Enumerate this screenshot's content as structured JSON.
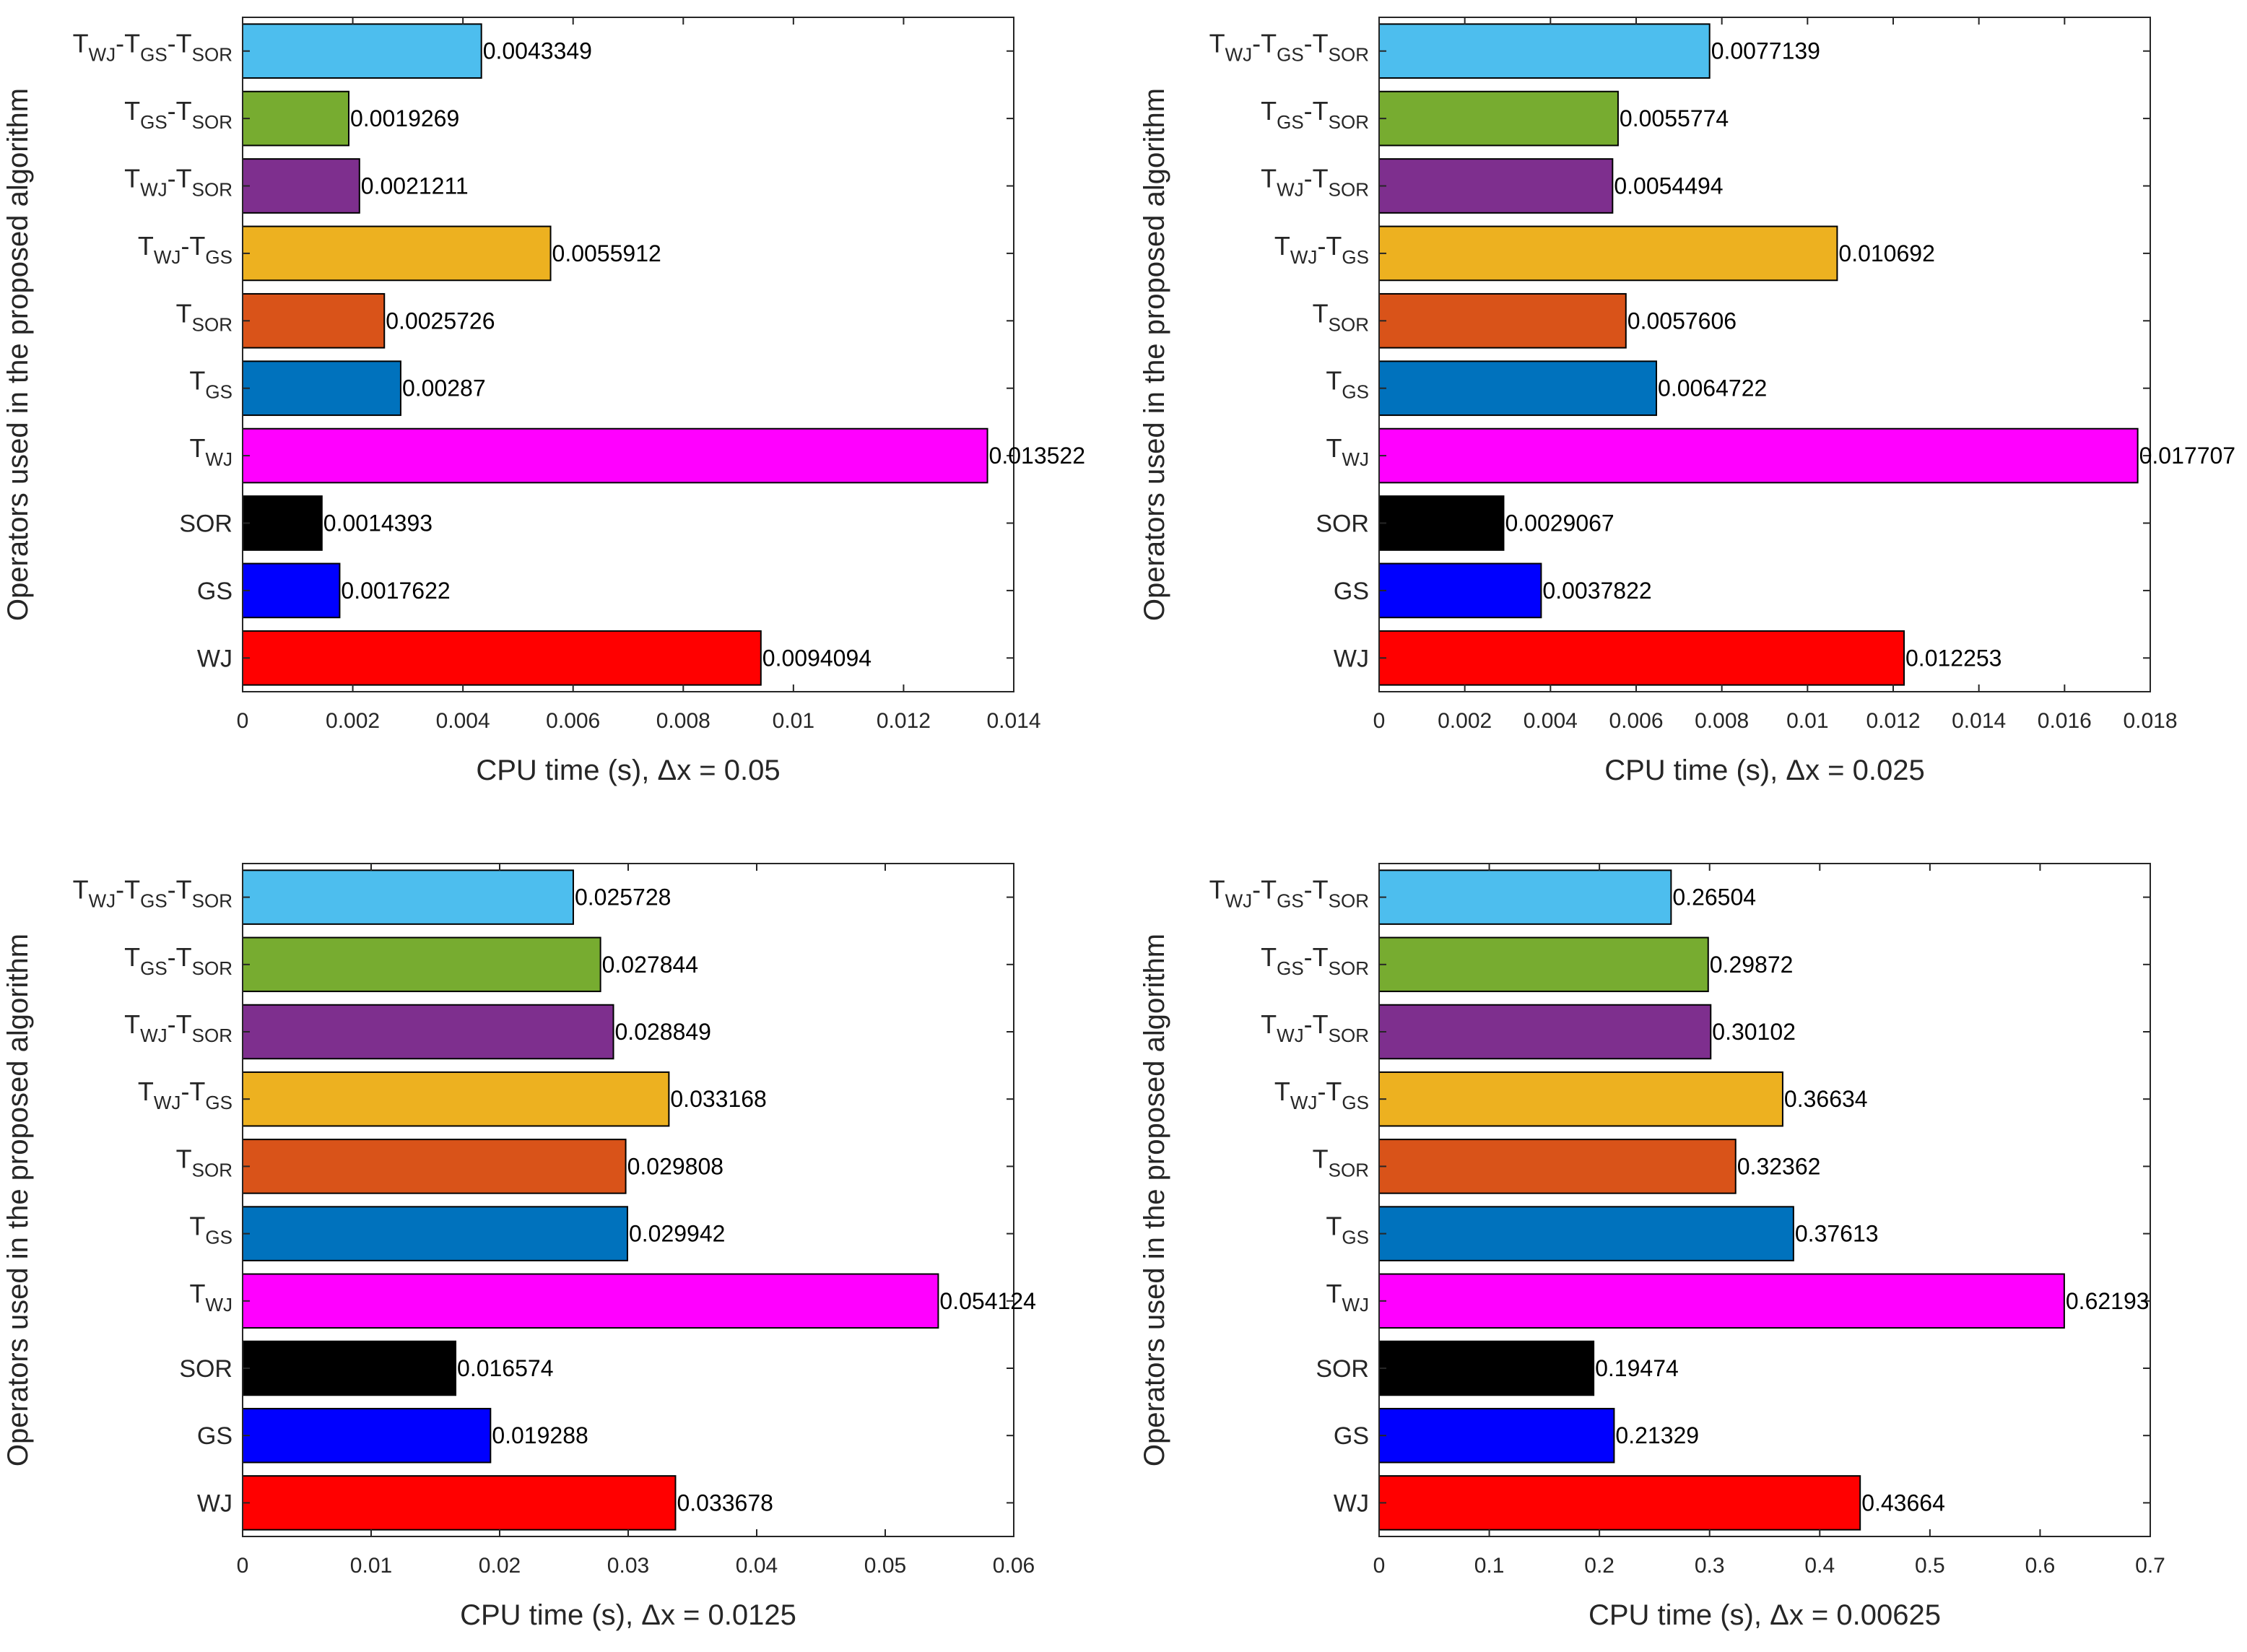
{
  "ylabel": "Operators used in the proposed algorithm",
  "operators": [
    {
      "main": "T",
      "parts": [
        [
          "WJ",
          true
        ],
        [
          "-T",
          false
        ],
        [
          "GS",
          true
        ],
        [
          "-T",
          false
        ],
        [
          "SOR",
          true
        ]
      ]
    },
    {
      "main": "T",
      "parts": [
        [
          "GS",
          true
        ],
        [
          "-T",
          false
        ],
        [
          "SOR",
          true
        ]
      ]
    },
    {
      "main": "T",
      "parts": [
        [
          "WJ",
          true
        ],
        [
          "-T",
          false
        ],
        [
          "SOR",
          true
        ]
      ]
    },
    {
      "main": "T",
      "parts": [
        [
          "WJ",
          true
        ],
        [
          "-T",
          false
        ],
        [
          "GS",
          true
        ]
      ]
    },
    {
      "main": "T",
      "parts": [
        [
          "SOR",
          true
        ]
      ]
    },
    {
      "main": "T",
      "parts": [
        [
          "GS",
          true
        ]
      ]
    },
    {
      "main": "T",
      "parts": [
        [
          "WJ",
          true
        ]
      ]
    },
    {
      "main": "SOR",
      "parts": []
    },
    {
      "main": "GS",
      "parts": []
    },
    {
      "main": "WJ",
      "parts": []
    }
  ],
  "colors": [
    "#4dbeee",
    "#77ac30",
    "#7e2f8e",
    "#edb120",
    "#d95319",
    "#0072bd",
    "#ff00ff",
    "#000000",
    "#0000ff",
    "#ff0000"
  ],
  "chart_data": [
    {
      "type": "bar",
      "orientation": "horizontal",
      "xlabel": "CPU time (s), Δx = 0.05",
      "xlim": [
        0,
        0.014
      ],
      "xticks": [
        0,
        0.002,
        0.004,
        0.006,
        0.008,
        0.01,
        0.012,
        0.014
      ],
      "xtick_labels": [
        "0",
        "0.002",
        "0.004",
        "0.006",
        "0.008",
        "0.01",
        "0.012",
        "0.014"
      ],
      "values": [
        0.0043349,
        0.0019269,
        0.0021211,
        0.0055912,
        0.0025726,
        0.00287,
        0.013522,
        0.0014393,
        0.0017622,
        0.0094094
      ],
      "value_labels": [
        "0.0043349",
        "0.0019269",
        "0.0021211",
        "0.0055912",
        "0.0025726",
        "0.00287",
        "0.013522",
        "0.0014393",
        "0.0017622",
        "0.0094094"
      ]
    },
    {
      "type": "bar",
      "orientation": "horizontal",
      "xlabel": "CPU time (s), Δx = 0.025",
      "xlim": [
        0,
        0.018
      ],
      "xticks": [
        0,
        0.002,
        0.004,
        0.006,
        0.008,
        0.01,
        0.012,
        0.014,
        0.016,
        0.018
      ],
      "xtick_labels": [
        "0",
        "0.002",
        "0.004",
        "0.006",
        "0.008",
        "0.01",
        "0.012",
        "0.014",
        "0.016",
        "0.018"
      ],
      "values": [
        0.0077139,
        0.0055774,
        0.0054494,
        0.010692,
        0.0057606,
        0.0064722,
        0.017707,
        0.0029067,
        0.0037822,
        0.012253
      ],
      "value_labels": [
        "0.0077139",
        "0.0055774",
        "0.0054494",
        "0.010692",
        "0.0057606",
        "0.0064722",
        "0.017707",
        "0.0029067",
        "0.0037822",
        "0.012253"
      ]
    },
    {
      "type": "bar",
      "orientation": "horizontal",
      "xlabel": "CPU time (s), Δx = 0.0125",
      "xlim": [
        0,
        0.06
      ],
      "xticks": [
        0,
        0.01,
        0.02,
        0.03,
        0.04,
        0.05,
        0.06
      ],
      "xtick_labels": [
        "0",
        "0.01",
        "0.02",
        "0.03",
        "0.04",
        "0.05",
        "0.06"
      ],
      "values": [
        0.025728,
        0.027844,
        0.028849,
        0.033168,
        0.029808,
        0.029942,
        0.054124,
        0.016574,
        0.019288,
        0.033678
      ],
      "value_labels": [
        "0.025728",
        "0.027844",
        "0.028849",
        "0.033168",
        "0.029808",
        "0.029942",
        "0.054124",
        "0.016574",
        "0.019288",
        "0.033678"
      ]
    },
    {
      "type": "bar",
      "orientation": "horizontal",
      "xlabel": "CPU time (s), Δx = 0.00625",
      "xlim": [
        0,
        0.7
      ],
      "xticks": [
        0,
        0.1,
        0.2,
        0.3,
        0.4,
        0.5,
        0.6,
        0.7
      ],
      "xtick_labels": [
        "0",
        "0.1",
        "0.2",
        "0.3",
        "0.4",
        "0.5",
        "0.6",
        "0.7"
      ],
      "values": [
        0.26504,
        0.29872,
        0.30102,
        0.36634,
        0.32362,
        0.37613,
        0.62193,
        0.19474,
        0.21329,
        0.43664
      ],
      "value_labels": [
        "0.26504",
        "0.29872",
        "0.30102",
        "0.36634",
        "0.32362",
        "0.37613",
        "0.62193",
        "0.19474",
        "0.21329",
        "0.43664"
      ]
    }
  ]
}
